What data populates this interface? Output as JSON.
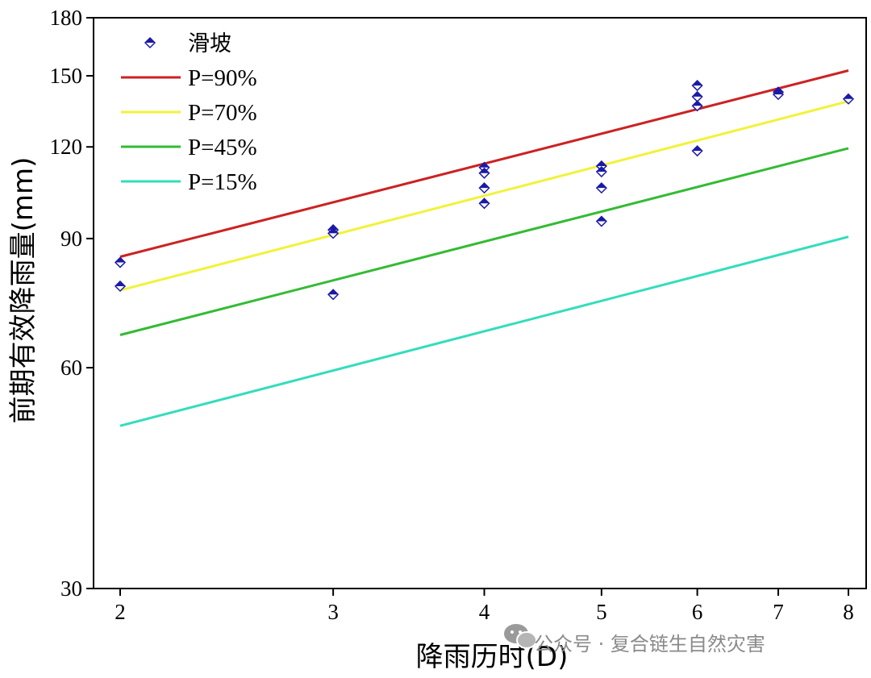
{
  "chart_data": {
    "type": "scatter",
    "xlabel": "降雨历时(D)",
    "ylabel": "前期有效降雨量(mm)",
    "x_scale": "log",
    "y_scale": "log",
    "xlim": [
      2,
      8
    ],
    "ylim": [
      30,
      180
    ],
    "x_ticks": [
      2,
      3,
      4,
      5,
      6,
      7,
      8
    ],
    "y_ticks": [
      30,
      60,
      90,
      120,
      150,
      180
    ],
    "grid": false,
    "legend_position": "top-left",
    "series": [
      {
        "name": "滑坡",
        "kind": "scatter",
        "color": "#1a1aa6",
        "marker": "diamond",
        "points": [
          {
            "x": 2,
            "y": 83.5
          },
          {
            "x": 2,
            "y": 77.5
          },
          {
            "x": 3,
            "y": 92.5
          },
          {
            "x": 3,
            "y": 91.5
          },
          {
            "x": 3,
            "y": 75.5
          },
          {
            "x": 4,
            "y": 112.5
          },
          {
            "x": 4,
            "y": 110.5
          },
          {
            "x": 4,
            "y": 105.5
          },
          {
            "x": 4,
            "y": 100.5
          },
          {
            "x": 5,
            "y": 113.0
          },
          {
            "x": 5,
            "y": 111.0
          },
          {
            "x": 5,
            "y": 105.5
          },
          {
            "x": 5,
            "y": 95.0
          },
          {
            "x": 6,
            "y": 145.5
          },
          {
            "x": 6,
            "y": 140.5
          },
          {
            "x": 6,
            "y": 136.5
          },
          {
            "x": 6,
            "y": 118.5
          },
          {
            "x": 7,
            "y": 142.5
          },
          {
            "x": 7,
            "y": 141.5
          },
          {
            "x": 8,
            "y": 139.5
          }
        ]
      },
      {
        "name": "P=90%",
        "kind": "line",
        "color": "#cc2222",
        "points": [
          {
            "x": 2,
            "y": 85
          },
          {
            "x": 8,
            "y": 152.5
          }
        ]
      },
      {
        "name": "P=70%",
        "kind": "line",
        "color": "#f2f23a",
        "points": [
          {
            "x": 2,
            "y": 76.5
          },
          {
            "x": 8,
            "y": 138.5
          }
        ]
      },
      {
        "name": "P=45%",
        "kind": "line",
        "color": "#33bb33",
        "points": [
          {
            "x": 2,
            "y": 66.5
          },
          {
            "x": 8,
            "y": 119.5
          }
        ]
      },
      {
        "name": "P=15%",
        "kind": "line",
        "color": "#33ddbb",
        "points": [
          {
            "x": 2,
            "y": 50
          },
          {
            "x": 8,
            "y": 90.5
          }
        ]
      }
    ]
  },
  "watermark": "公众号 · 复合链生自然灾害",
  "watermark_icon": "wechat-icon"
}
